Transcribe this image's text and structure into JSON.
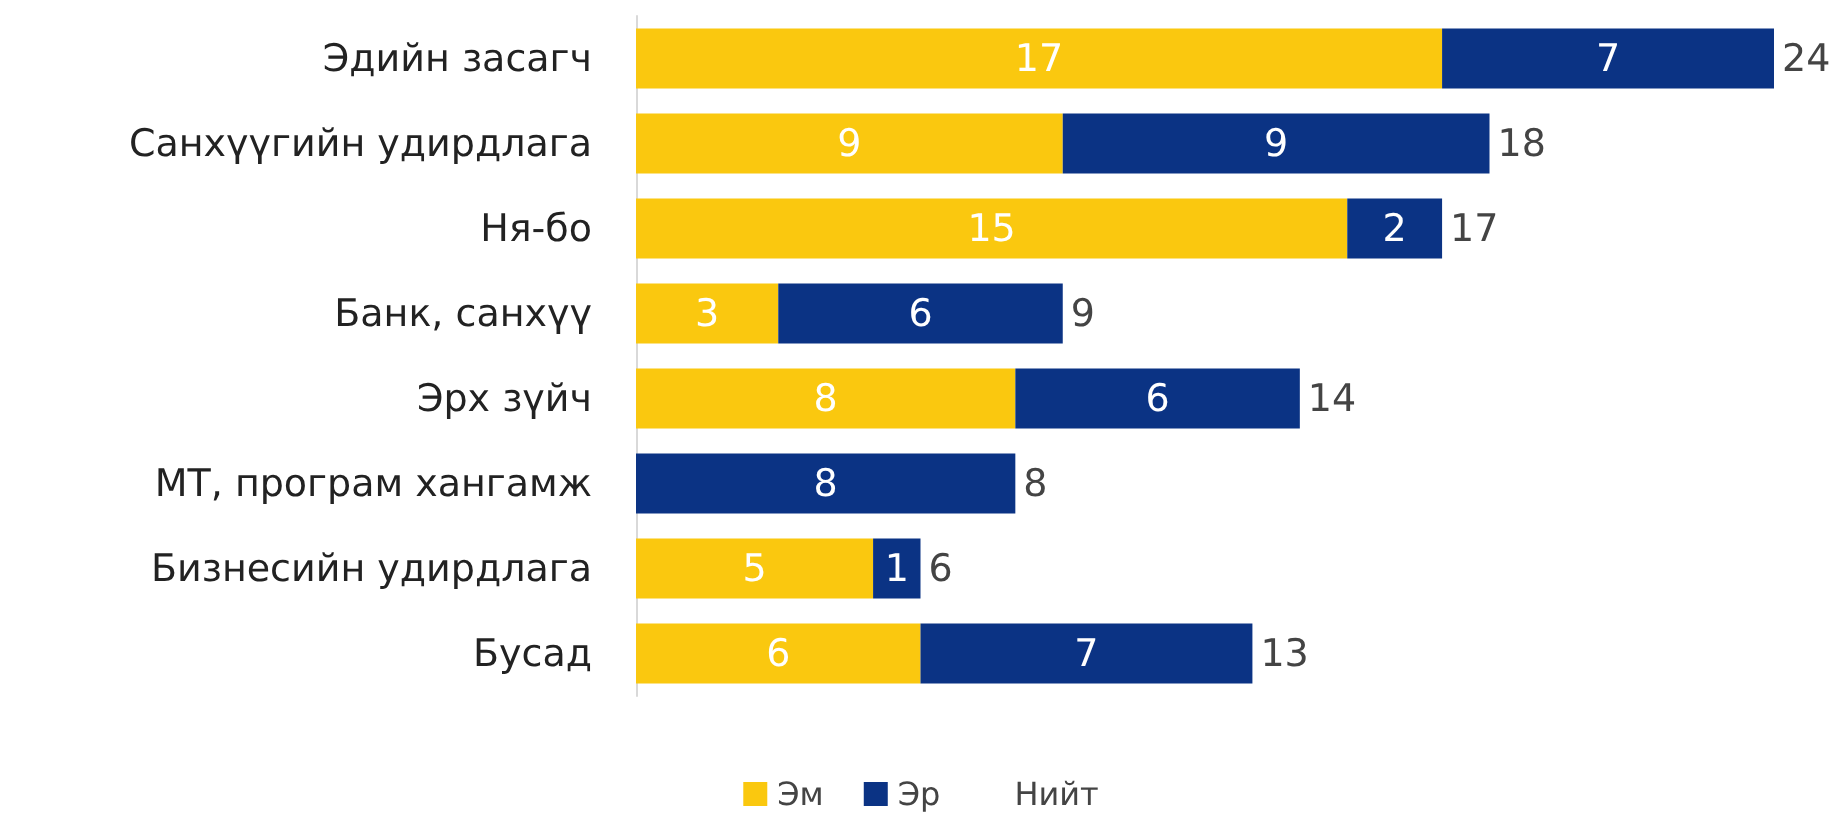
{
  "chart_data": {
    "type": "bar",
    "orientation": "horizontal",
    "stacked": true,
    "data_labels": true,
    "legend": "bottom",
    "grid": false,
    "categories": [
      "Эдийн засагч",
      "Санхүүгийн удирдлага",
      "Ня-бо",
      "Банк, санхүү",
      "Эрх зүйч",
      "МТ, програм хангамж",
      "Бизнесийн удирдлага",
      "Бусад"
    ],
    "series": [
      {
        "name": "Эм",
        "color": "#fac80f",
        "values": [
          17,
          9,
          15,
          3,
          8,
          null,
          5,
          6
        ]
      },
      {
        "name": "Эр",
        "color": "#0b3384",
        "values": [
          7,
          9,
          2,
          6,
          6,
          8,
          1,
          7
        ]
      },
      {
        "name": "Нийт",
        "values": [
          null,
          null,
          null,
          null,
          null,
          null,
          null,
          null
        ]
      }
    ],
    "totals": [
      "24",
      "18",
      "17",
      "9",
      "14",
      "8",
      "6",
      "13"
    ]
  }
}
